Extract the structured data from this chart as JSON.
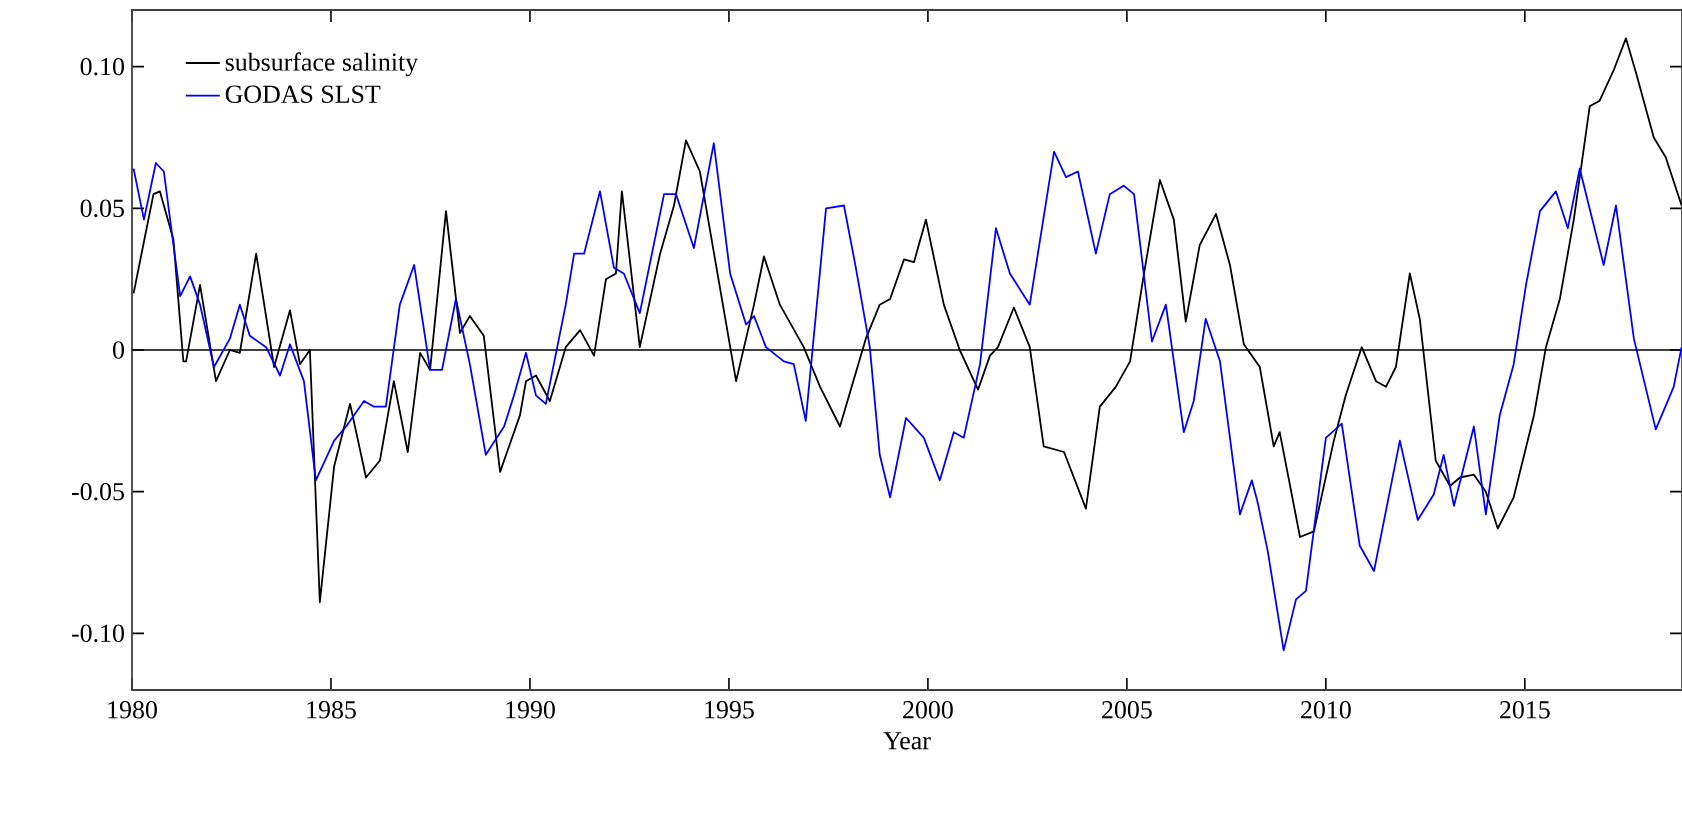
{
  "chart_data": {
    "type": "line",
    "xlabel": "Year",
    "xlim": [
      1980,
      2018.95
    ],
    "xticks": [
      1980,
      1985,
      1990,
      1995,
      2000,
      2005,
      2010,
      2015
    ],
    "ylim": [
      -0.12,
      0.12
    ],
    "yticks": [
      {
        "value": -0.1,
        "label": "-0.10"
      },
      {
        "value": -0.05,
        "label": "-0.05"
      },
      {
        "value": 0,
        "label": "0"
      },
      {
        "value": 0.05,
        "label": "0.05"
      },
      {
        "value": 0.1,
        "label": "0.10"
      }
    ],
    "legend": "top left",
    "grid": false,
    "marker": "none",
    "line_style": "solid",
    "ref_lines": [
      {
        "axis": "y",
        "value": 0,
        "color": "#000000"
      }
    ],
    "series": [
      {
        "name": "subsurface salinity",
        "color": "#000000",
        "x": [
          1980.04,
          1980.54,
          1980.7,
          1981.04,
          1981.29,
          1981.36,
          1981.71,
          1982.11,
          1982.46,
          1982.71,
          1983.12,
          1983.57,
          1983.97,
          1984.22,
          1984.47,
          1984.72,
          1985.08,
          1985.48,
          1985.88,
          1986.23,
          1986.58,
          1986.93,
          1987.24,
          1987.49,
          1987.89,
          1988.24,
          1988.49,
          1988.84,
          1989.25,
          1989.75,
          1989.9,
          1990.15,
          1990.5,
          1990.9,
          1991.26,
          1991.61,
          1991.91,
          1992.16,
          1992.31,
          1992.41,
          1992.76,
          1993.27,
          1993.62,
          1993.92,
          1994.27,
          1995.18,
          1995.63,
          1995.88,
          1996.28,
          1996.88,
          1997.29,
          1997.79,
          1998.44,
          1998.79,
          1999.05,
          1999.4,
          1999.65,
          1999.95,
          2000.4,
          2000.8,
          2001.26,
          2001.56,
          2001.76,
          2002.16,
          2002.56,
          2002.91,
          2003.42,
          2003.97,
          2004.32,
          2004.72,
          2005.08,
          2005.43,
          2005.83,
          2006.18,
          2006.48,
          2006.83,
          2007.24,
          2007.59,
          2007.94,
          2008.34,
          2008.69,
          2008.84,
          2009.35,
          2009.7,
          2010.2,
          2010.5,
          2010.9,
          2011.26,
          2011.51,
          2011.76,
          2012.11,
          2012.36,
          2012.76,
          2013.12,
          2013.37,
          2013.72,
          2014.02,
          2014.32,
          2014.72,
          2015.23,
          2015.53,
          2015.88,
          2016.23,
          2016.63,
          2016.88,
          2017.24,
          2017.54,
          2017.79,
          2018.24,
          2018.54,
          2018.94
        ],
        "values": [
          0.02,
          0.055,
          0.056,
          0.039,
          -0.004,
          -0.004,
          0.023,
          -0.011,
          0.0,
          -0.001,
          0.034,
          -0.006,
          0.014,
          -0.005,
          0.0,
          -0.089,
          -0.041,
          -0.019,
          -0.045,
          -0.039,
          -0.011,
          -0.036,
          -0.001,
          -0.007,
          0.049,
          0.006,
          0.012,
          0.005,
          -0.043,
          -0.023,
          -0.011,
          -0.009,
          -0.018,
          0.001,
          0.007,
          -0.002,
          0.025,
          0.027,
          0.056,
          0.044,
          0.001,
          0.034,
          0.051,
          0.074,
          0.063,
          -0.011,
          0.016,
          0.033,
          0.016,
          0.001,
          -0.013,
          -0.027,
          0.004,
          0.016,
          0.018,
          0.032,
          0.031,
          0.046,
          0.016,
          0.0,
          -0.014,
          -0.002,
          0.001,
          0.015,
          0.001,
          -0.034,
          -0.036,
          -0.056,
          -0.02,
          -0.013,
          -0.004,
          0.027,
          0.06,
          0.046,
          0.01,
          0.037,
          0.048,
          0.03,
          0.002,
          -0.006,
          -0.034,
          -0.029,
          -0.066,
          -0.064,
          -0.032,
          -0.016,
          0.001,
          -0.011,
          -0.013,
          -0.006,
          0.027,
          0.011,
          -0.039,
          -0.048,
          -0.045,
          -0.044,
          -0.05,
          -0.063,
          -0.052,
          -0.023,
          0.001,
          0.018,
          0.046,
          0.086,
          0.088,
          0.099,
          0.11,
          0.098,
          0.075,
          0.068,
          0.051
        ]
      },
      {
        "name": "GODAS SLST",
        "color": "#0000ff",
        "x": [
          1980.04,
          1980.3,
          1980.6,
          1980.8,
          1981.21,
          1981.46,
          1981.71,
          1982.06,
          1982.46,
          1982.71,
          1982.96,
          1983.37,
          1983.72,
          1983.97,
          1984.32,
          1984.62,
          1985.08,
          1985.38,
          1985.83,
          1986.08,
          1986.38,
          1986.73,
          1987.09,
          1987.49,
          1987.79,
          1988.14,
          1988.49,
          1988.89,
          1989.35,
          1989.6,
          1989.9,
          1990.15,
          1990.4,
          1990.9,
          1991.11,
          1991.36,
          1991.76,
          1992.11,
          1992.36,
          1992.76,
          1993.37,
          1993.67,
          1994.12,
          1994.62,
          1995.03,
          1995.43,
          1995.63,
          1995.93,
          1996.38,
          1996.63,
          1996.93,
          1997.44,
          1997.89,
          1998.19,
          1998.54,
          1998.79,
          1999.05,
          1999.45,
          1999.9,
          2000.3,
          2000.65,
          2000.9,
          2001.31,
          2001.71,
          2002.06,
          2002.56,
          2003.17,
          2003.47,
          2003.77,
          2004.22,
          2004.57,
          2004.92,
          2005.18,
          2005.63,
          2005.98,
          2006.43,
          2006.68,
          2006.98,
          2007.34,
          2007.84,
          2008.14,
          2008.29,
          2008.54,
          2008.94,
          2009.25,
          2009.5,
          2010.0,
          2010.4,
          2010.85,
          2011.21,
          2011.86,
          2012.31,
          2012.71,
          2012.96,
          2013.22,
          2013.72,
          2014.02,
          2014.37,
          2014.72,
          2015.03,
          2015.38,
          2015.78,
          2016.08,
          2016.38,
          2016.98,
          2017.29,
          2017.74,
          2018.29,
          2018.74,
          2018.94
        ],
        "values": [
          0.064,
          0.046,
          0.066,
          0.063,
          0.019,
          0.026,
          0.016,
          -0.006,
          0.004,
          0.016,
          0.005,
          0.001,
          -0.009,
          0.002,
          -0.011,
          -0.046,
          -0.032,
          -0.027,
          -0.018,
          -0.02,
          -0.02,
          0.016,
          0.03,
          -0.007,
          -0.007,
          0.018,
          -0.005,
          -0.037,
          -0.027,
          -0.016,
          -0.001,
          -0.016,
          -0.019,
          0.016,
          0.034,
          0.034,
          0.056,
          0.029,
          0.027,
          0.013,
          0.055,
          0.055,
          0.036,
          0.073,
          0.027,
          0.009,
          0.012,
          0.001,
          -0.004,
          -0.005,
          -0.025,
          0.05,
          0.051,
          0.029,
          0.001,
          -0.037,
          -0.052,
          -0.024,
          -0.031,
          -0.046,
          -0.029,
          -0.031,
          -0.005,
          0.043,
          0.027,
          0.016,
          0.07,
          0.061,
          0.063,
          0.034,
          0.055,
          0.058,
          0.055,
          0.003,
          0.016,
          -0.029,
          -0.018,
          0.011,
          -0.004,
          -0.058,
          -0.046,
          -0.054,
          -0.071,
          -0.106,
          -0.088,
          -0.085,
          -0.031,
          -0.026,
          -0.069,
          -0.078,
          -0.032,
          -0.06,
          -0.051,
          -0.037,
          -0.055,
          -0.027,
          -0.058,
          -0.023,
          -0.005,
          0.023,
          0.049,
          0.056,
          0.043,
          0.064,
          0.03,
          0.051,
          0.004,
          -0.028,
          -0.013,
          0.001
        ]
      }
    ]
  }
}
